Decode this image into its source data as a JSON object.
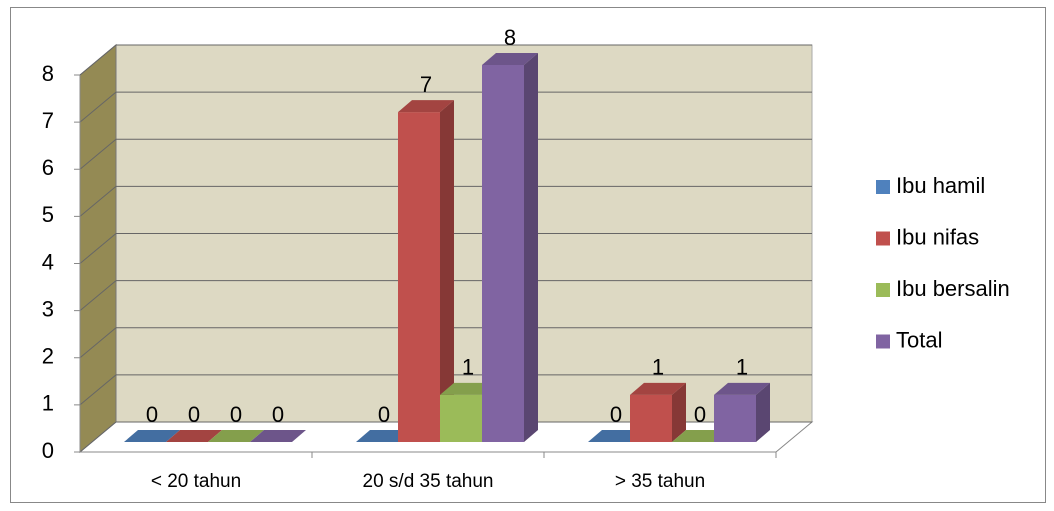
{
  "chart_data": {
    "type": "bar3d",
    "categories": [
      "< 20 tahun",
      "20 s/d 35 tahun",
      "> 35 tahun"
    ],
    "series": [
      {
        "name": "Ibu hamil",
        "color": "#4f81bd",
        "values": [
          0,
          0,
          0
        ]
      },
      {
        "name": "Ibu nifas",
        "color": "#c0504d",
        "values": [
          0,
          7,
          1
        ]
      },
      {
        "name": "Ibu bersalin",
        "color": "#9bbb59",
        "values": [
          0,
          1,
          0
        ]
      },
      {
        "name": "Total",
        "color": "#8064a2",
        "values": [
          0,
          8,
          1
        ]
      }
    ],
    "ylim": [
      0,
      8
    ],
    "yticks": [
      0,
      1,
      2,
      3,
      4,
      5,
      6,
      7,
      8
    ],
    "grid": true,
    "legend": "right"
  }
}
